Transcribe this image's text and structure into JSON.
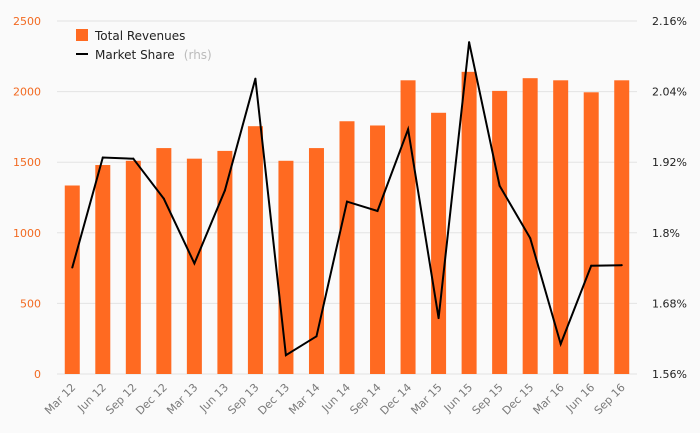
{
  "chart_data": {
    "type": "bar",
    "categories": [
      "Mar 12",
      "Jun 12",
      "Sep 12",
      "Dec 12",
      "Mar 13",
      "Jun 13",
      "Sep 13",
      "Dec 13",
      "Mar 14",
      "Jun 14",
      "Sep 14",
      "Dec 14",
      "Mar 15",
      "Jun 15",
      "Sep 15",
      "Dec 15",
      "Mar 16",
      "Jun 16",
      "Sep 16"
    ],
    "series": [
      {
        "name": "Total Revenues",
        "type": "bar",
        "axis": "left",
        "color": "#ff6a21",
        "values": [
          1335,
          1480,
          1510,
          1600,
          1525,
          1580,
          1755,
          1510,
          1600,
          1790,
          1760,
          2080,
          1850,
          2140,
          2005,
          2095,
          2080,
          1995,
          2080
        ]
      },
      {
        "name": "Market Share",
        "name_suffix": "(rhs)",
        "type": "line",
        "axis": "right",
        "color": "#000000",
        "values": [
          1.741,
          1.928,
          1.926,
          1.858,
          1.748,
          1.872,
          2.062,
          1.592,
          1.624,
          1.853,
          1.837,
          1.976,
          1.655,
          2.124,
          1.88,
          1.791,
          1.611,
          1.744,
          1.745
        ]
      }
    ],
    "left_axis": {
      "min": 0,
      "max": 2500,
      "ticks": [
        "0",
        "500",
        "1000",
        "1500",
        "2000",
        "2500"
      ]
    },
    "right_axis": {
      "min": 1.56,
      "max": 2.16,
      "ticks": [
        "1.56%",
        "1.68%",
        "1.8%",
        "1.92%",
        "2.04%",
        "2.16%"
      ]
    },
    "grid": true,
    "legend_position": "top-left",
    "title": "",
    "xlabel": "",
    "ylabel": ""
  }
}
